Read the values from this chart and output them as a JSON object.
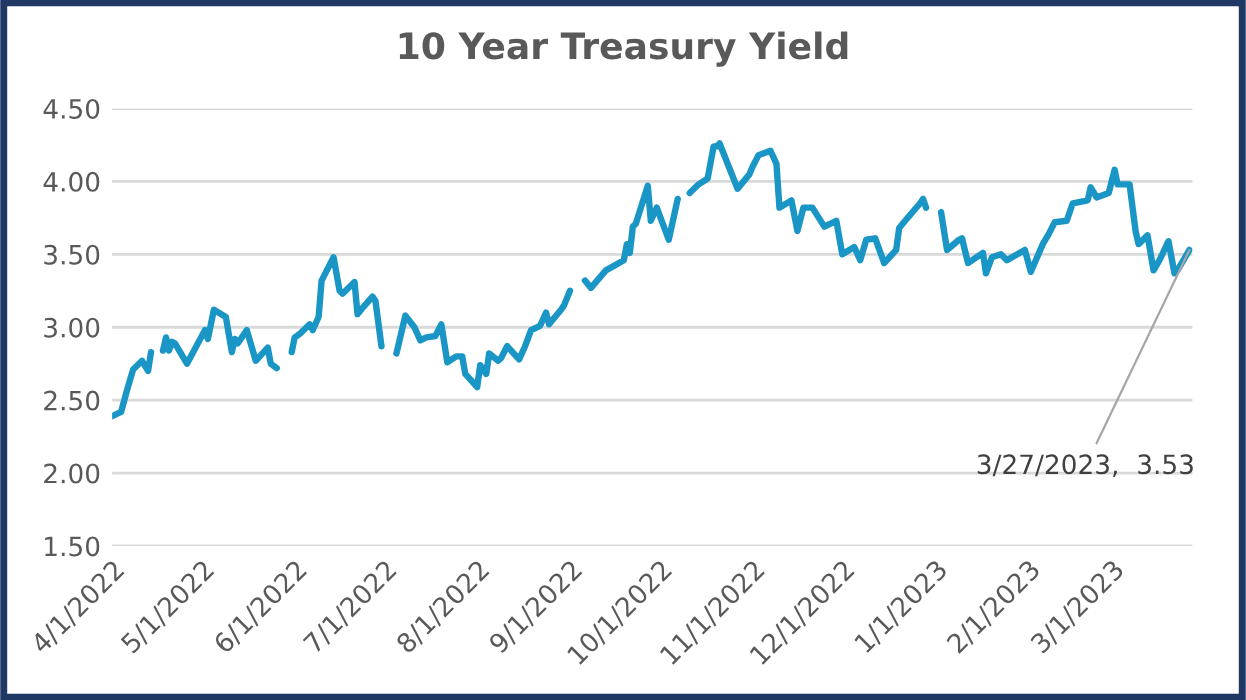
{
  "chart_data": {
    "type": "line",
    "title": "10 Year Treasury Yield",
    "x": [
      "2022-04-01",
      "2022-04-04",
      "2022-04-06",
      "2022-04-08",
      "2022-04-11",
      "2022-04-13",
      "2022-04-14",
      "2022-04-15",
      "2022-04-18",
      "2022-04-19",
      "2022-04-20",
      "2022-04-21",
      "2022-04-22",
      "2022-04-26",
      "2022-05-02",
      "2022-05-03",
      "2022-05-05",
      "2022-05-09",
      "2022-05-11",
      "2022-05-12",
      "2022-05-13",
      "2022-05-16",
      "2022-05-19",
      "2022-05-23",
      "2022-05-24",
      "2022-05-26",
      "2022-05-30",
      "2022-05-31",
      "2022-06-01",
      "2022-06-03",
      "2022-06-06",
      "2022-06-07",
      "2022-06-09",
      "2022-06-10",
      "2022-06-14",
      "2022-06-16",
      "2022-06-17",
      "2022-06-21",
      "2022-06-22",
      "2022-06-24",
      "2022-06-27",
      "2022-06-28",
      "2022-06-30",
      "2022-07-04",
      "2022-07-05",
      "2022-07-08",
      "2022-07-11",
      "2022-07-13",
      "2022-07-15",
      "2022-07-18",
      "2022-07-20",
      "2022-07-22",
      "2022-07-25",
      "2022-07-27",
      "2022-07-28",
      "2022-08-01",
      "2022-08-02",
      "2022-08-04",
      "2022-08-05",
      "2022-08-08",
      "2022-08-09",
      "2022-08-11",
      "2022-08-15",
      "2022-08-17",
      "2022-08-19",
      "2022-08-22",
      "2022-08-24",
      "2022-08-25",
      "2022-08-29",
      "2022-08-30",
      "2022-09-01",
      "2022-09-05",
      "2022-09-06",
      "2022-09-08",
      "2022-09-13",
      "2022-09-19",
      "2022-09-20",
      "2022-09-21",
      "2022-09-22",
      "2022-09-23",
      "2022-09-27",
      "2022-09-28",
      "2022-09-30",
      "2022-10-04",
      "2022-10-07",
      "2022-10-10",
      "2022-10-11",
      "2022-10-14",
      "2022-10-17",
      "2022-10-19",
      "2022-10-20",
      "2022-10-21",
      "2022-10-27",
      "2022-10-31",
      "2022-11-01",
      "2022-11-03",
      "2022-11-07",
      "2022-11-09",
      "2022-11-10",
      "2022-11-14",
      "2022-11-16",
      "2022-11-18",
      "2022-11-21",
      "2022-11-25",
      "2022-11-29",
      "2022-12-01",
      "2022-12-05",
      "2022-12-07",
      "2022-12-09",
      "2022-12-12",
      "2022-12-15",
      "2022-12-19",
      "2022-12-20",
      "2022-12-22",
      "2022-12-27",
      "2022-12-28",
      "2022-12-29",
      "2023-01-02",
      "2023-01-03",
      "2023-01-05",
      "2023-01-09",
      "2023-01-10",
      "2023-01-12",
      "2023-01-17",
      "2023-01-18",
      "2023-01-20",
      "2023-01-23",
      "2023-01-25",
      "2023-01-31",
      "2023-02-02",
      "2023-02-06",
      "2023-02-08",
      "2023-02-10",
      "2023-02-14",
      "2023-02-16",
      "2023-02-21",
      "2023-02-22",
      "2023-02-24",
      "2023-02-28",
      "2023-03-02",
      "2023-03-03",
      "2023-03-07",
      "2023-03-09",
      "2023-03-10",
      "2023-03-13",
      "2023-03-15",
      "2023-03-17",
      "2023-03-20",
      "2023-03-22",
      "2023-03-23",
      "2023-03-27"
    ],
    "series": [
      {
        "color": "#1a96c6",
        "values": [
          2.39,
          2.42,
          2.57,
          2.71,
          2.77,
          2.7,
          2.83,
          null,
          2.84,
          2.93,
          2.84,
          2.9,
          2.89,
          2.75,
          2.98,
          2.92,
          3.12,
          3.07,
          2.83,
          2.92,
          2.89,
          2.98,
          2.77,
          2.86,
          2.75,
          2.72,
          null,
          2.83,
          2.93,
          2.96,
          3.02,
          2.98,
          3.07,
          3.32,
          3.48,
          3.25,
          3.23,
          3.31,
          3.09,
          3.14,
          3.21,
          3.18,
          2.87,
          null,
          2.82,
          3.08,
          3.0,
          2.91,
          2.93,
          2.94,
          3.02,
          2.76,
          2.8,
          2.8,
          2.68,
          2.59,
          2.74,
          2.68,
          2.82,
          2.77,
          2.79,
          2.87,
          2.78,
          2.87,
          2.98,
          3.01,
          3.1,
          3.02,
          3.12,
          3.15,
          3.25,
          null,
          3.32,
          3.27,
          3.39,
          3.46,
          3.57,
          3.51,
          3.69,
          3.71,
          3.97,
          3.73,
          3.82,
          3.6,
          3.88,
          null,
          3.92,
          3.98,
          4.02,
          4.24,
          4.24,
          4.26,
          3.95,
          4.05,
          4.1,
          4.18,
          4.21,
          4.12,
          3.82,
          3.87,
          3.66,
          3.82,
          3.82,
          3.69,
          3.73,
          3.5,
          3.55,
          3.46,
          3.6,
          3.61,
          3.44,
          3.53,
          3.68,
          3.73,
          3.85,
          3.88,
          3.82,
          null,
          3.79,
          3.53,
          3.6,
          3.61,
          3.44,
          3.51,
          3.37,
          3.48,
          3.5,
          3.46,
          3.53,
          3.38,
          3.57,
          3.64,
          3.72,
          3.73,
          3.85,
          3.87,
          3.96,
          3.89,
          3.92,
          4.08,
          3.98,
          3.98,
          3.66,
          3.57,
          3.63,
          3.39,
          3.46,
          3.59,
          3.37,
          3.39,
          3.53
        ]
      }
    ],
    "xlim": [
      "2022-04-01",
      "2023-03-28"
    ],
    "xticks": [
      {
        "value": "2022-04-01",
        "label": "4/1/2022"
      },
      {
        "value": "2022-05-01",
        "label": "5/1/2022"
      },
      {
        "value": "2022-06-01",
        "label": "6/1/2022"
      },
      {
        "value": "2022-07-01",
        "label": "7/1/2022"
      },
      {
        "value": "2022-08-01",
        "label": "8/1/2022"
      },
      {
        "value": "2022-09-01",
        "label": "9/1/2022"
      },
      {
        "value": "2022-10-01",
        "label": "10/1/2022"
      },
      {
        "value": "2022-11-01",
        "label": "11/1/2022"
      },
      {
        "value": "2022-12-01",
        "label": "12/1/2022"
      },
      {
        "value": "2023-01-01",
        "label": "1/1/2023"
      },
      {
        "value": "2023-02-01",
        "label": "2/1/2023"
      },
      {
        "value": "2023-03-01",
        "label": "3/1/2023"
      }
    ],
    "ylim": [
      1.5,
      4.5
    ],
    "yticks": [
      {
        "value": 1.5,
        "label": "1.50"
      },
      {
        "value": 2.0,
        "label": "2.00"
      },
      {
        "value": 2.5,
        "label": "2.50"
      },
      {
        "value": 3.0,
        "label": "3.00"
      },
      {
        "value": 3.5,
        "label": "3.50"
      },
      {
        "value": 4.0,
        "label": "4.00"
      },
      {
        "value": 4.5,
        "label": "4.50"
      }
    ],
    "grid": "y",
    "legend": false,
    "line_style": "solid",
    "marker": "none",
    "annotations": [
      {
        "text": "3/27/2023,  3.53",
        "x": "2023-03-27",
        "y": 3.53
      }
    ]
  }
}
